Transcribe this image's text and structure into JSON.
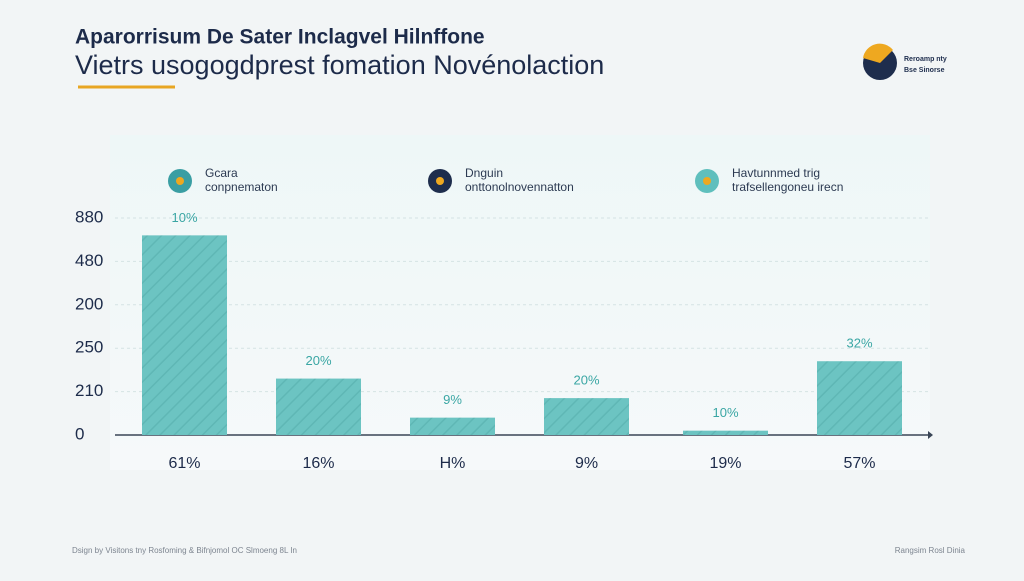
{
  "chart_data": {
    "type": "bar",
    "title": "Aparorrisum De Sater Inclagvel Hilnffone",
    "subtitle": "Vietrs usogogdprest fomation Novénolaction",
    "brand": [
      "Reroamp nty",
      "Bse Sinorse"
    ],
    "legend": [
      {
        "name": "Gcara",
        "detail": "conpnematon"
      },
      {
        "name": "Dnguin",
        "detail": "onttonolnovennatton"
      },
      {
        "name": "Havtunnmed trig",
        "detail": "trafsellengoneu irecn"
      }
    ],
    "categories": [
      "61%",
      "16%",
      "H%",
      "9%",
      "19%",
      "57%"
    ],
    "values": [
      4.6,
      1.3,
      0.4,
      0.85,
      0.1,
      1.7
    ],
    "bar_labels": [
      "10%",
      "20%",
      "9%",
      "20%",
      "10%",
      "32%"
    ],
    "color": "#6cc4c2",
    "ylim": [
      0,
      5
    ],
    "yticks": [
      {
        "value": 0,
        "label": "0"
      },
      {
        "value": 1,
        "label": "210"
      },
      {
        "value": 2,
        "label": "250"
      },
      {
        "value": 3,
        "label": "200"
      },
      {
        "value": 4,
        "label": "480"
      },
      {
        "value": 5,
        "label": "880"
      }
    ],
    "grid": true,
    "footer_left": "Dsign by Visitons tny Rosfoming & Bifnjomol OC Slmoeng 8L In",
    "footer_right": "Rangsim Rosl Dinia"
  }
}
